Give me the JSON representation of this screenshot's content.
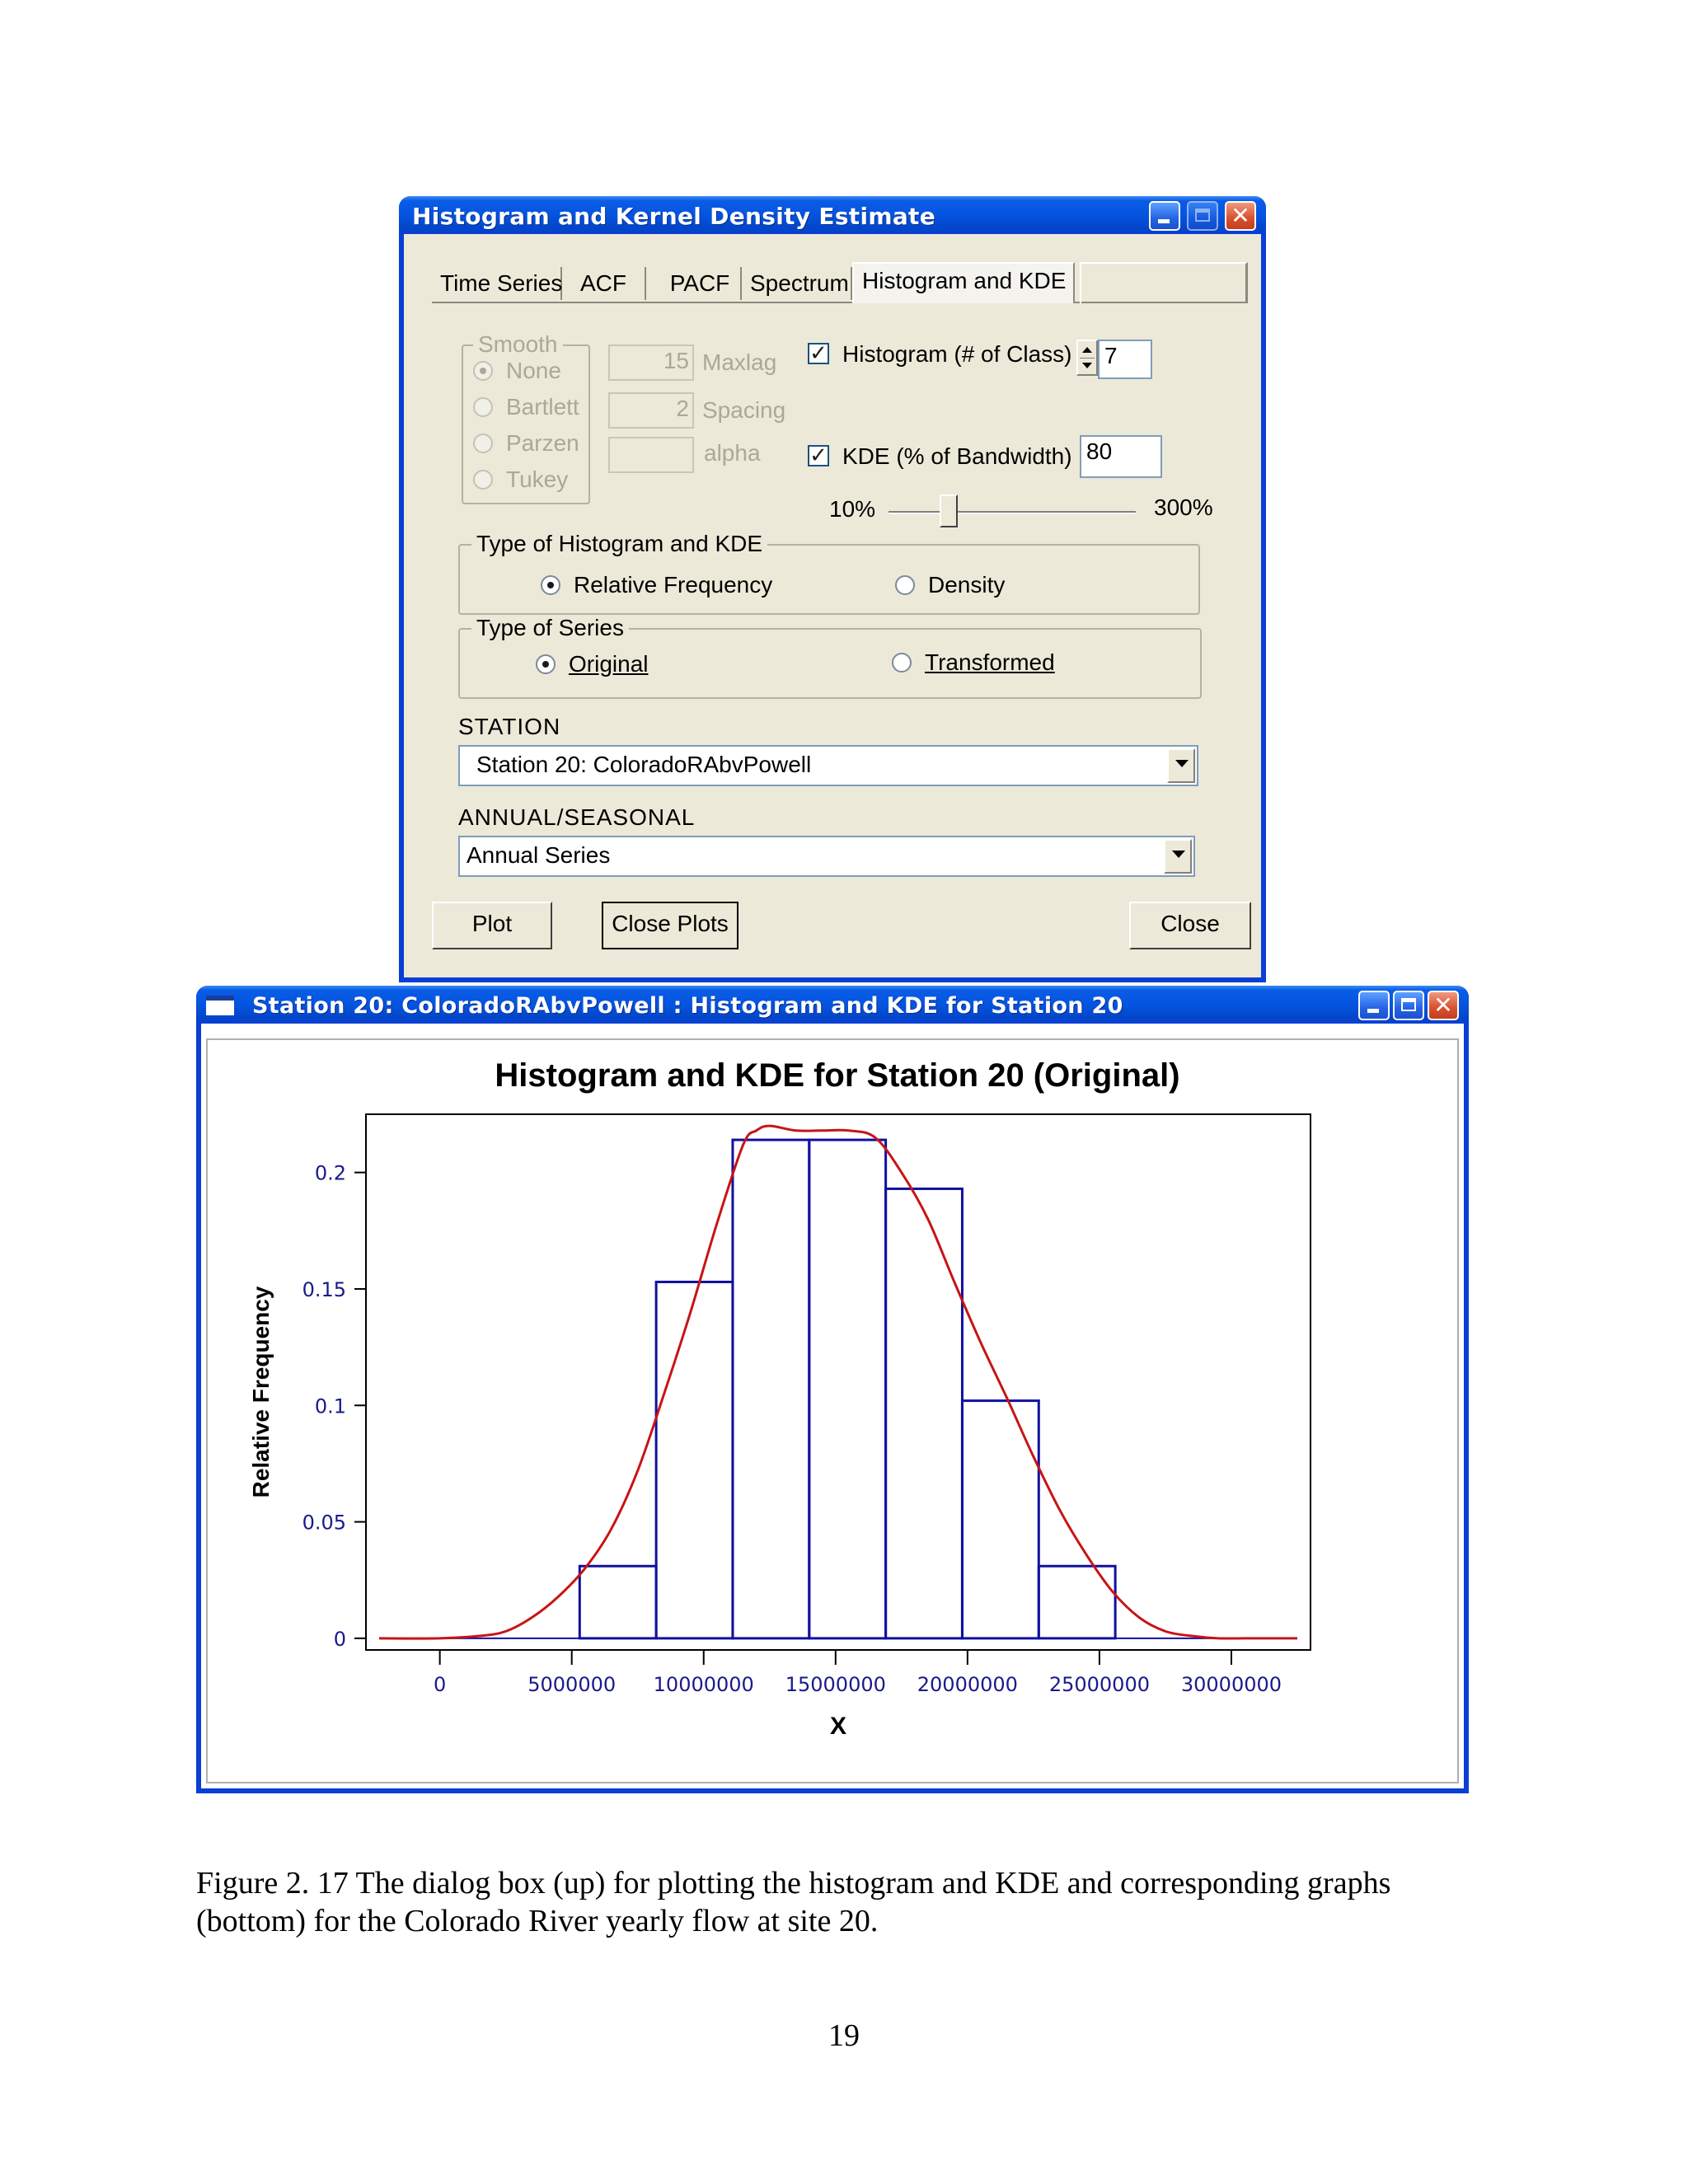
{
  "dialog": {
    "title": "Histogram and Kernel Density Estimate",
    "tabs": [
      "Time Series",
      "ACF",
      "PACF",
      "Spectrum",
      "Histogram and KDE"
    ],
    "active_tab": "Histogram and KDE",
    "smooth": {
      "group_title": "Smooth",
      "options": [
        "None",
        "Bartlett",
        "Parzen",
        "Tukey"
      ],
      "selected": "None",
      "enabled": false
    },
    "maxlag": {
      "value": "15",
      "label": "Maxlag"
    },
    "spacing": {
      "value": "2",
      "label": "Spacing"
    },
    "alpha": {
      "value": "",
      "label": "alpha"
    },
    "histogram": {
      "label": "Histogram (# of Class)",
      "checked": true,
      "value": "7"
    },
    "kde": {
      "label": "KDE (% of Bandwidth)",
      "checked": true,
      "value": "80"
    },
    "bandwidth_slider": {
      "min_label": "10%",
      "max_label": "300%",
      "value_percent": 80
    },
    "type_of_histogram": {
      "group_title": "Type of Histogram and KDE",
      "options": [
        "Relative Frequency",
        "Density"
      ],
      "selected": "Relative Frequency"
    },
    "type_of_series": {
      "group_title": "Type of Series",
      "options": [
        "Original",
        "Transformed"
      ],
      "selected": "Original"
    },
    "station": {
      "label": "STATION",
      "value": "Station 20:  ColoradoRAbvPowell"
    },
    "annual_seasonal": {
      "label": "ANNUAL/SEASONAL",
      "value": "Annual Series"
    },
    "buttons": {
      "plot": "Plot",
      "close_plots": "Close Plots",
      "close": "Close"
    }
  },
  "plot_window": {
    "title": "Station 20:  ColoradoRAbvPowell : Histogram and KDE for Station 20"
  },
  "colors": {
    "titlebar": "#0a3fd6",
    "histogram": "#1010a0",
    "kde": "#c81414",
    "axis_ticks": "#1a1a8c"
  },
  "chart_data": {
    "type": "bar",
    "title": "Histogram and KDE for Station 20 (Original)",
    "xlabel": "X",
    "ylabel": "Relative Frequency",
    "xlim": [
      -2800000,
      33000000
    ],
    "ylim": [
      -0.005,
      0.225
    ],
    "x_ticks": [
      0,
      5000000,
      10000000,
      15000000,
      20000000,
      25000000,
      30000000
    ],
    "x_tick_labels": [
      "0",
      "5000000",
      "10000000",
      "15000000",
      "20000000",
      "25000000",
      "30000000"
    ],
    "y_ticks": [
      0,
      0.05,
      0.1,
      0.15,
      0.2
    ],
    "y_tick_labels": [
      "0",
      "0.05",
      "0.1",
      "0.15",
      "0.2"
    ],
    "histogram": {
      "bin_edges": [
        5300000,
        8200000,
        11100000,
        14000000,
        16900000,
        19800000,
        22700000,
        25600000
      ],
      "values": [
        0.031,
        0.153,
        0.214,
        0.214,
        0.193,
        0.102,
        0.031
      ]
    },
    "kde": {
      "x": [
        -2300000,
        0,
        1500000,
        2500000,
        3500000,
        4500000,
        5500000,
        6500000,
        7500000,
        8500000,
        9500000,
        10500000,
        11500000,
        12000000,
        12500000,
        13500000,
        14500000,
        15500000,
        16500000,
        17500000,
        18500000,
        19500000,
        20500000,
        21500000,
        22500000,
        23500000,
        24500000,
        25500000,
        26500000,
        27500000,
        28500000,
        29500000,
        30500000,
        32500000
      ],
      "y": [
        0,
        0,
        0.001,
        0.003,
        0.009,
        0.018,
        0.03,
        0.047,
        0.072,
        0.105,
        0.14,
        0.178,
        0.212,
        0.218,
        0.22,
        0.218,
        0.218,
        0.218,
        0.215,
        0.2,
        0.18,
        0.153,
        0.127,
        0.103,
        0.078,
        0.055,
        0.036,
        0.02,
        0.009,
        0.003,
        0.001,
        0,
        0,
        0
      ]
    },
    "grid": false,
    "legend": "none"
  },
  "caption": "Figure 2. 17 The dialog box (up) for plotting the histogram and KDE and  corresponding graphs (bottom) for the Colorado River yearly flow at site 20.",
  "page_number": "19"
}
